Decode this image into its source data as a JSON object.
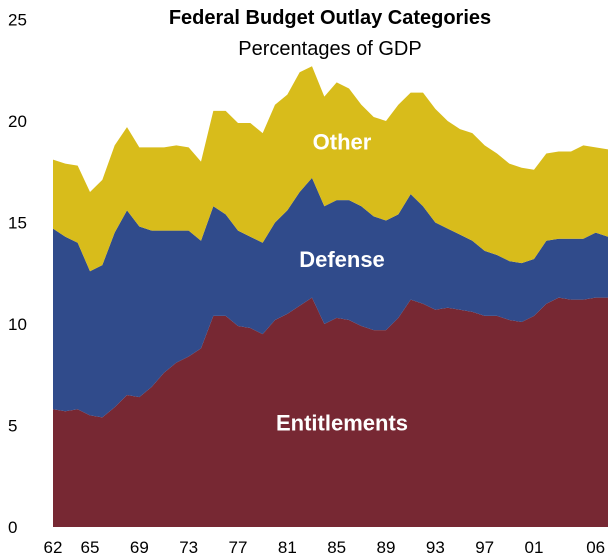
{
  "chart_data": {
    "type": "area",
    "stacked": true,
    "title": "Federal Budget Outlay Categories",
    "subtitle": "Percentages of GDP",
    "xlabel": "",
    "ylabel": "",
    "x": [
      "62",
      "63",
      "64",
      "65",
      "66",
      "67",
      "68",
      "69",
      "70",
      "71",
      "72",
      "73",
      "74",
      "75",
      "76",
      "77",
      "78",
      "79",
      "80",
      "81",
      "82",
      "83",
      "84",
      "85",
      "86",
      "87",
      "88",
      "89",
      "90",
      "91",
      "92",
      "93",
      "94",
      "95",
      "96",
      "97",
      "98",
      "99",
      "00",
      "01",
      "02",
      "03",
      "04",
      "05",
      "06",
      "07"
    ],
    "xticks": [
      "62",
      "65",
      "69",
      "73",
      "77",
      "81",
      "85",
      "89",
      "93",
      "97",
      "01",
      "06"
    ],
    "yticks": [
      0,
      5,
      10,
      15,
      20,
      25
    ],
    "ylim": [
      0,
      25
    ],
    "grid": false,
    "legend": "none",
    "series": [
      {
        "name": "Entitlements",
        "color": "#772833",
        "values": [
          5.8,
          5.7,
          5.8,
          5.5,
          5.4,
          5.9,
          6.5,
          6.4,
          6.9,
          7.6,
          8.1,
          8.4,
          8.8,
          10.4,
          10.4,
          9.9,
          9.8,
          9.5,
          10.2,
          10.5,
          10.9,
          11.3,
          10.0,
          10.3,
          10.2,
          9.9,
          9.7,
          9.7,
          10.3,
          11.2,
          11.0,
          10.7,
          10.8,
          10.7,
          10.6,
          10.4,
          10.4,
          10.2,
          10.1,
          10.4,
          11.0,
          11.3,
          11.2,
          11.2,
          11.3,
          11.3
        ]
      },
      {
        "name": "Defense",
        "color": "#304b8b",
        "values": [
          8.9,
          8.6,
          8.2,
          7.1,
          7.5,
          8.6,
          9.1,
          8.4,
          7.7,
          7.0,
          6.5,
          6.2,
          5.3,
          5.4,
          5.0,
          4.7,
          4.5,
          4.5,
          4.8,
          5.1,
          5.6,
          5.9,
          5.8,
          5.8,
          5.9,
          5.9,
          5.6,
          5.4,
          5.1,
          5.2,
          4.8,
          4.3,
          3.9,
          3.7,
          3.5,
          3.2,
          3.0,
          2.9,
          2.9,
          2.8,
          3.1,
          2.9,
          3.0,
          3.0,
          3.2,
          3.0
        ]
      },
      {
        "name": "Other",
        "color": "#d8bc1b",
        "values": [
          3.4,
          3.6,
          3.8,
          3.9,
          4.2,
          4.3,
          4.1,
          3.9,
          4.1,
          4.1,
          4.2,
          4.1,
          3.9,
          4.7,
          5.1,
          5.3,
          5.6,
          5.4,
          5.8,
          5.7,
          5.9,
          5.5,
          5.4,
          5.8,
          5.5,
          5.0,
          4.9,
          4.9,
          5.4,
          5.0,
          5.6,
          5.6,
          5.3,
          5.2,
          5.3,
          5.2,
          5.0,
          4.8,
          4.7,
          4.4,
          4.3,
          4.3,
          4.3,
          4.6,
          4.2,
          4.3
        ]
      }
    ]
  }
}
